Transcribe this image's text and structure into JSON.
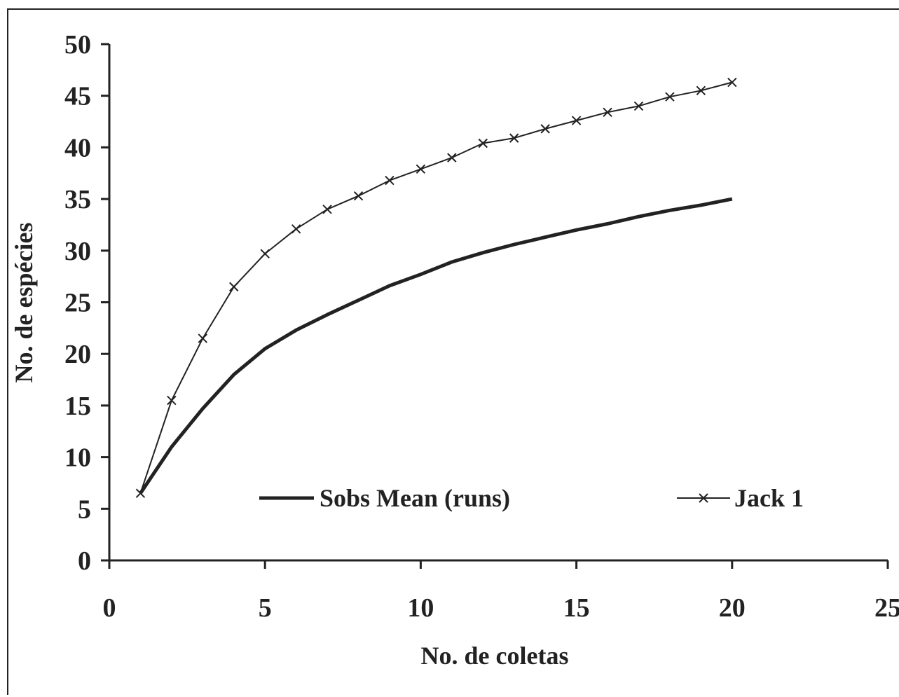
{
  "chart_data": {
    "type": "line",
    "xlabel": "No. de coletas",
    "ylabel": "No. de espécies",
    "xlim": [
      0,
      25
    ],
    "ylim": [
      0,
      50
    ],
    "xticks": [
      "0",
      "5",
      "10",
      "15",
      "20",
      "25"
    ],
    "yticks": [
      "0",
      "5",
      "10",
      "15",
      "20",
      "25",
      "30",
      "35",
      "40",
      "45",
      "50"
    ],
    "grid": false,
    "legend_position": "inside-bottom",
    "series": [
      {
        "name": "Sobs Mean (runs)",
        "marker": "none",
        "color": "#222222",
        "x": [
          1,
          2,
          3,
          4,
          5,
          6,
          7,
          8,
          9,
          10,
          11,
          12,
          13,
          14,
          15,
          16,
          17,
          18,
          19,
          20
        ],
        "values": [
          6.5,
          11,
          14.7,
          18,
          20.5,
          22.3,
          23.8,
          25.2,
          26.6,
          27.7,
          28.9,
          29.8,
          30.6,
          31.3,
          32,
          32.6,
          33.3,
          33.9,
          34.4,
          35
        ]
      },
      {
        "name": "Jack 1",
        "marker": "x",
        "color": "#222222",
        "x": [
          1,
          2,
          3,
          4,
          5,
          6,
          7,
          8,
          9,
          10,
          11,
          12,
          13,
          14,
          15,
          16,
          17,
          18,
          19,
          20
        ],
        "values": [
          6.5,
          15.5,
          21.5,
          26.5,
          29.7,
          32.1,
          34,
          35.3,
          36.8,
          37.9,
          39,
          40.4,
          40.9,
          41.8,
          42.6,
          43.4,
          44,
          44.9,
          45.5,
          46.3
        ]
      }
    ]
  }
}
